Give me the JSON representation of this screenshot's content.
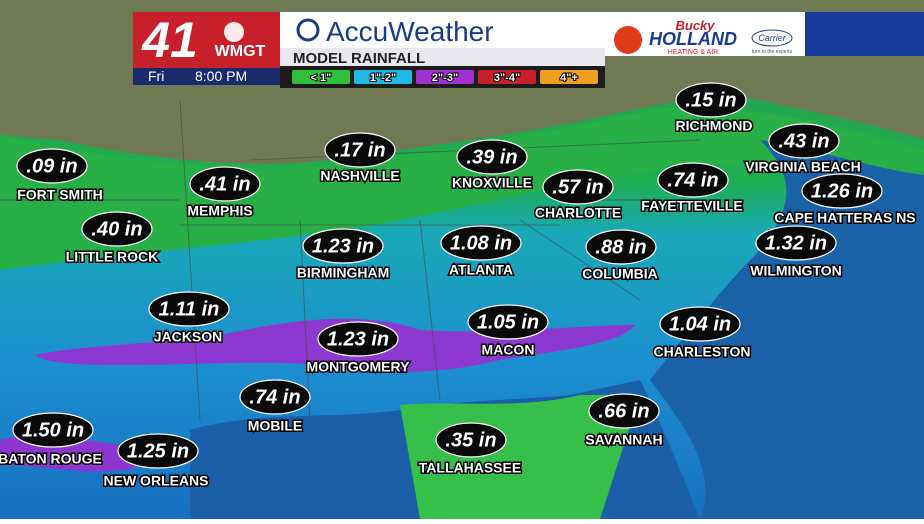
{
  "header": {
    "channel": "41",
    "station": "WMGT",
    "day": "Fri",
    "time": "8:00 PM",
    "brand": "AccuWeather",
    "subtitle": "MODEL RAINFALL",
    "legend": [
      {
        "label": "< 1\"",
        "color": "#2fbf3a"
      },
      {
        "label": "1\"-2\"",
        "color": "#21b8e6"
      },
      {
        "label": "2\"-3\"",
        "color": "#a030d0"
      },
      {
        "label": "3\"-4\"",
        "color": "#c8202a"
      },
      {
        "label": "4\"+",
        "color": "#f0a020"
      }
    ]
  },
  "sponsor": {
    "script": "Bucky",
    "name": "HOLLAND",
    "service": "HEATING & AIR",
    "partner": "Carrier",
    "tagline": "turn to the experts"
  },
  "cities": [
    {
      "amount": ".09 in",
      "name": "FORT SMITH"
    },
    {
      "amount": ".40 in",
      "name": "LITTLE ROCK"
    },
    {
      "amount": ".41 in",
      "name": "MEMPHIS"
    },
    {
      "amount": ".17 in",
      "name": "NASHVILLE"
    },
    {
      "amount": ".39 in",
      "name": "KNOXVILLE"
    },
    {
      "amount": ".57 in",
      "name": "CHARLOTTE"
    },
    {
      "amount": ".74 in",
      "name": "FAYETTEVILLE"
    },
    {
      "amount": ".15 in",
      "name": "RICHMOND"
    },
    {
      "amount": ".43 in",
      "name": "VIRGINIA BEACH"
    },
    {
      "amount": "1.26 in",
      "name": "CAPE HATTERAS NS"
    },
    {
      "amount": "1.32 in",
      "name": "WILMINGTON"
    },
    {
      "amount": ".88 in",
      "name": "COLUMBIA"
    },
    {
      "amount": "1.08 in",
      "name": "ATLANTA"
    },
    {
      "amount": "1.23 in",
      "name": "BIRMINGHAM"
    },
    {
      "amount": "1.11 in",
      "name": "JACKSON"
    },
    {
      "amount": "1.23 in",
      "name": "MONTGOMERY"
    },
    {
      "amount": "1.05 in",
      "name": "MACON"
    },
    {
      "amount": "1.04 in",
      "name": "CHARLESTON"
    },
    {
      "amount": ".74 in",
      "name": "MOBILE"
    },
    {
      "amount": ".66 in",
      "name": "SAVANNAH"
    },
    {
      "amount": "1.50 in",
      "name": "BATON ROUGE"
    },
    {
      "amount": "1.25 in",
      "name": "NEW ORLEANS"
    },
    {
      "amount": ".35 in",
      "name": "TALLAHASSEE"
    }
  ]
}
